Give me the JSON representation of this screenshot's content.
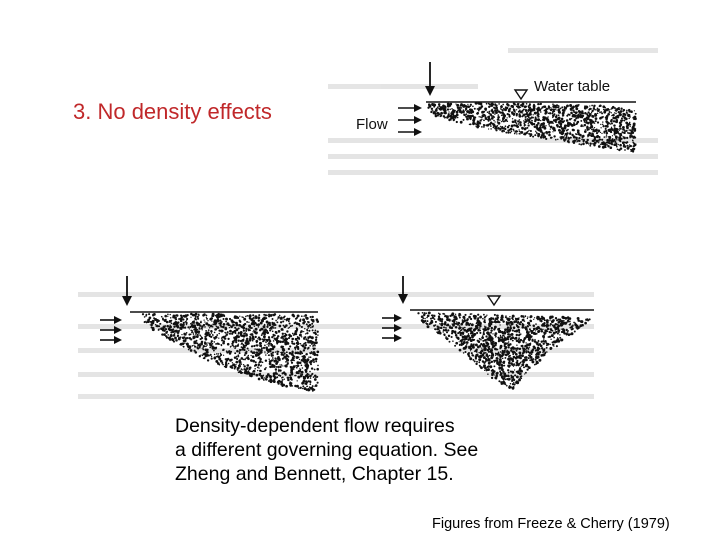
{
  "heading": "3. No density effects",
  "figure_top": {
    "water_table_label": "Water table",
    "flow_label": "Flow"
  },
  "body_text": [
    "Density-dependent flow requires",
    "a different governing equation.  See",
    "Zheng and Bennett, Chapter 15."
  ],
  "credit": "Figures from Freeze & Cherry (1979)",
  "colors": {
    "heading": "#c0282a",
    "text": "#000000",
    "ink": "#111111"
  },
  "icons": [
    "down-arrow-icon",
    "water-table-triangle-icon",
    "flow-arrow-icon"
  ]
}
